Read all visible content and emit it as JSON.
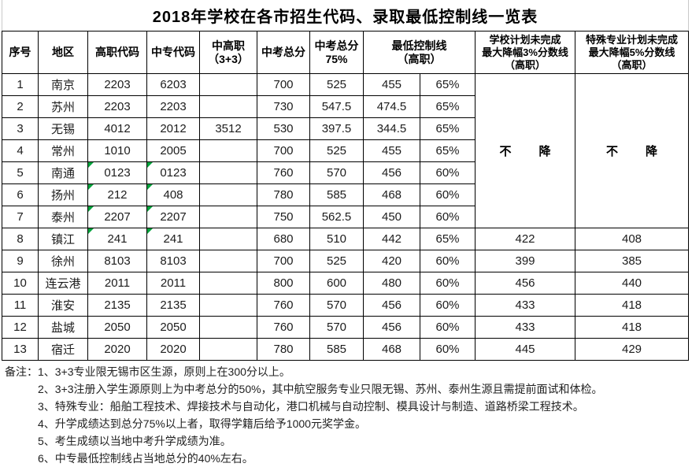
{
  "title": "2018年学校在各市招生代码、录取最低控制线一览表",
  "colors": {
    "marker_green": "#00A33C",
    "table_border": "#000000",
    "title_side_line": "#C9C9C9"
  },
  "table": {
    "headers": {
      "no": "序号",
      "region": "地区",
      "gz_code": "高职代码",
      "zz_code": "中专代码",
      "zgz": "中高职\n（3+3）",
      "zk_total": "中考总分",
      "zk_75": "中考总分\n75%",
      "min_line": "最低控制线\n（高职）",
      "school_drop": "学校计划未完成\n最大降幅3%分数线\n（高职）",
      "special_drop": "特殊专业计划未完成\n最大降幅5%分数线\n（高职）"
    },
    "no_drop_label": "不　降",
    "rows": [
      {
        "no": "1",
        "region": "南京",
        "gz": "2203",
        "zz": "6203",
        "zgz": "",
        "total": "700",
        "p75": "525",
        "min": "455",
        "pct": "65%",
        "school": "",
        "special": "",
        "marked": false
      },
      {
        "no": "2",
        "region": "苏州",
        "gz": "2203",
        "zz": "2203",
        "zgz": "",
        "total": "730",
        "p75": "547.5",
        "min": "474.5",
        "pct": "65%",
        "school": "",
        "special": "",
        "marked": false
      },
      {
        "no": "3",
        "region": "无锡",
        "gz": "4012",
        "zz": "2012",
        "zgz": "3512",
        "total": "530",
        "p75": "397.5",
        "min": "344.5",
        "pct": "65%",
        "school": "",
        "special": "",
        "marked": false
      },
      {
        "no": "4",
        "region": "常州",
        "gz": "1010",
        "zz": "2005",
        "zgz": "",
        "total": "700",
        "p75": "525",
        "min": "455",
        "pct": "65%",
        "school": "",
        "special": "",
        "marked": false
      },
      {
        "no": "5",
        "region": "南通",
        "gz": "0123",
        "zz": "0123",
        "zgz": "",
        "total": "760",
        "p75": "570",
        "min": "456",
        "pct": "60%",
        "school": "",
        "special": "",
        "marked": true
      },
      {
        "no": "6",
        "region": "扬州",
        "gz": "212",
        "zz": "408",
        "zgz": "",
        "total": "780",
        "p75": "585",
        "min": "468",
        "pct": "60%",
        "school": "",
        "special": "",
        "marked": true
      },
      {
        "no": "7",
        "region": "泰州",
        "gz": "2207",
        "zz": "2207",
        "zgz": "",
        "total": "750",
        "p75": "562.5",
        "min": "450",
        "pct": "60%",
        "school": "",
        "special": "",
        "marked": true
      },
      {
        "no": "8",
        "region": "镇江",
        "gz": "241",
        "zz": "241",
        "zgz": "",
        "total": "680",
        "p75": "510",
        "min": "442",
        "pct": "65%",
        "school": "422",
        "special": "408",
        "marked": true
      },
      {
        "no": "9",
        "region": "徐州",
        "gz": "8103",
        "zz": "8103",
        "zgz": "",
        "total": "700",
        "p75": "525",
        "min": "420",
        "pct": "60%",
        "school": "399",
        "special": "385",
        "marked": false
      },
      {
        "no": "10",
        "region": "连云港",
        "gz": "2011",
        "zz": "2011",
        "zgz": "",
        "total": "800",
        "p75": "600",
        "min": "480",
        "pct": "60%",
        "school": "456",
        "special": "440",
        "marked": false
      },
      {
        "no": "11",
        "region": "淮安",
        "gz": "2135",
        "zz": "2135",
        "zgz": "",
        "total": "760",
        "p75": "570",
        "min": "456",
        "pct": "60%",
        "school": "433",
        "special": "418",
        "marked": false
      },
      {
        "no": "12",
        "region": "盐城",
        "gz": "2050",
        "zz": "2050",
        "zgz": "",
        "total": "760",
        "p75": "570",
        "min": "456",
        "pct": "60%",
        "school": "433",
        "special": "418",
        "marked": false
      },
      {
        "no": "13",
        "region": "宿迁",
        "gz": "2020",
        "zz": "2020",
        "zgz": "",
        "total": "780",
        "p75": "585",
        "min": "468",
        "pct": "60%",
        "school": "445",
        "special": "429",
        "marked": false
      }
    ],
    "merged_rows_span": 7
  },
  "notes": {
    "label": "备注：",
    "items": [
      "1、3+3专业限无锡市区生源，原则上在300分以上。",
      "2、3+3注册入学生源原则上为中考总分的50%，其中航空服务专业只限无锡、苏州、泰州生源且需提前面试和体检。",
      "3、特殊专业：船舶工程技术、焊接技术与自动化，港口机械与自动控制、模具设计与制造、道路桥梁工程技术。",
      "4、升学成绩达到总分75%以上者，取得学籍后给予1000元奖学金。",
      "5、考生成绩以当地中考升学成绩为准。",
      "6、中专最低控制线占当地总分的40%左右。"
    ]
  }
}
